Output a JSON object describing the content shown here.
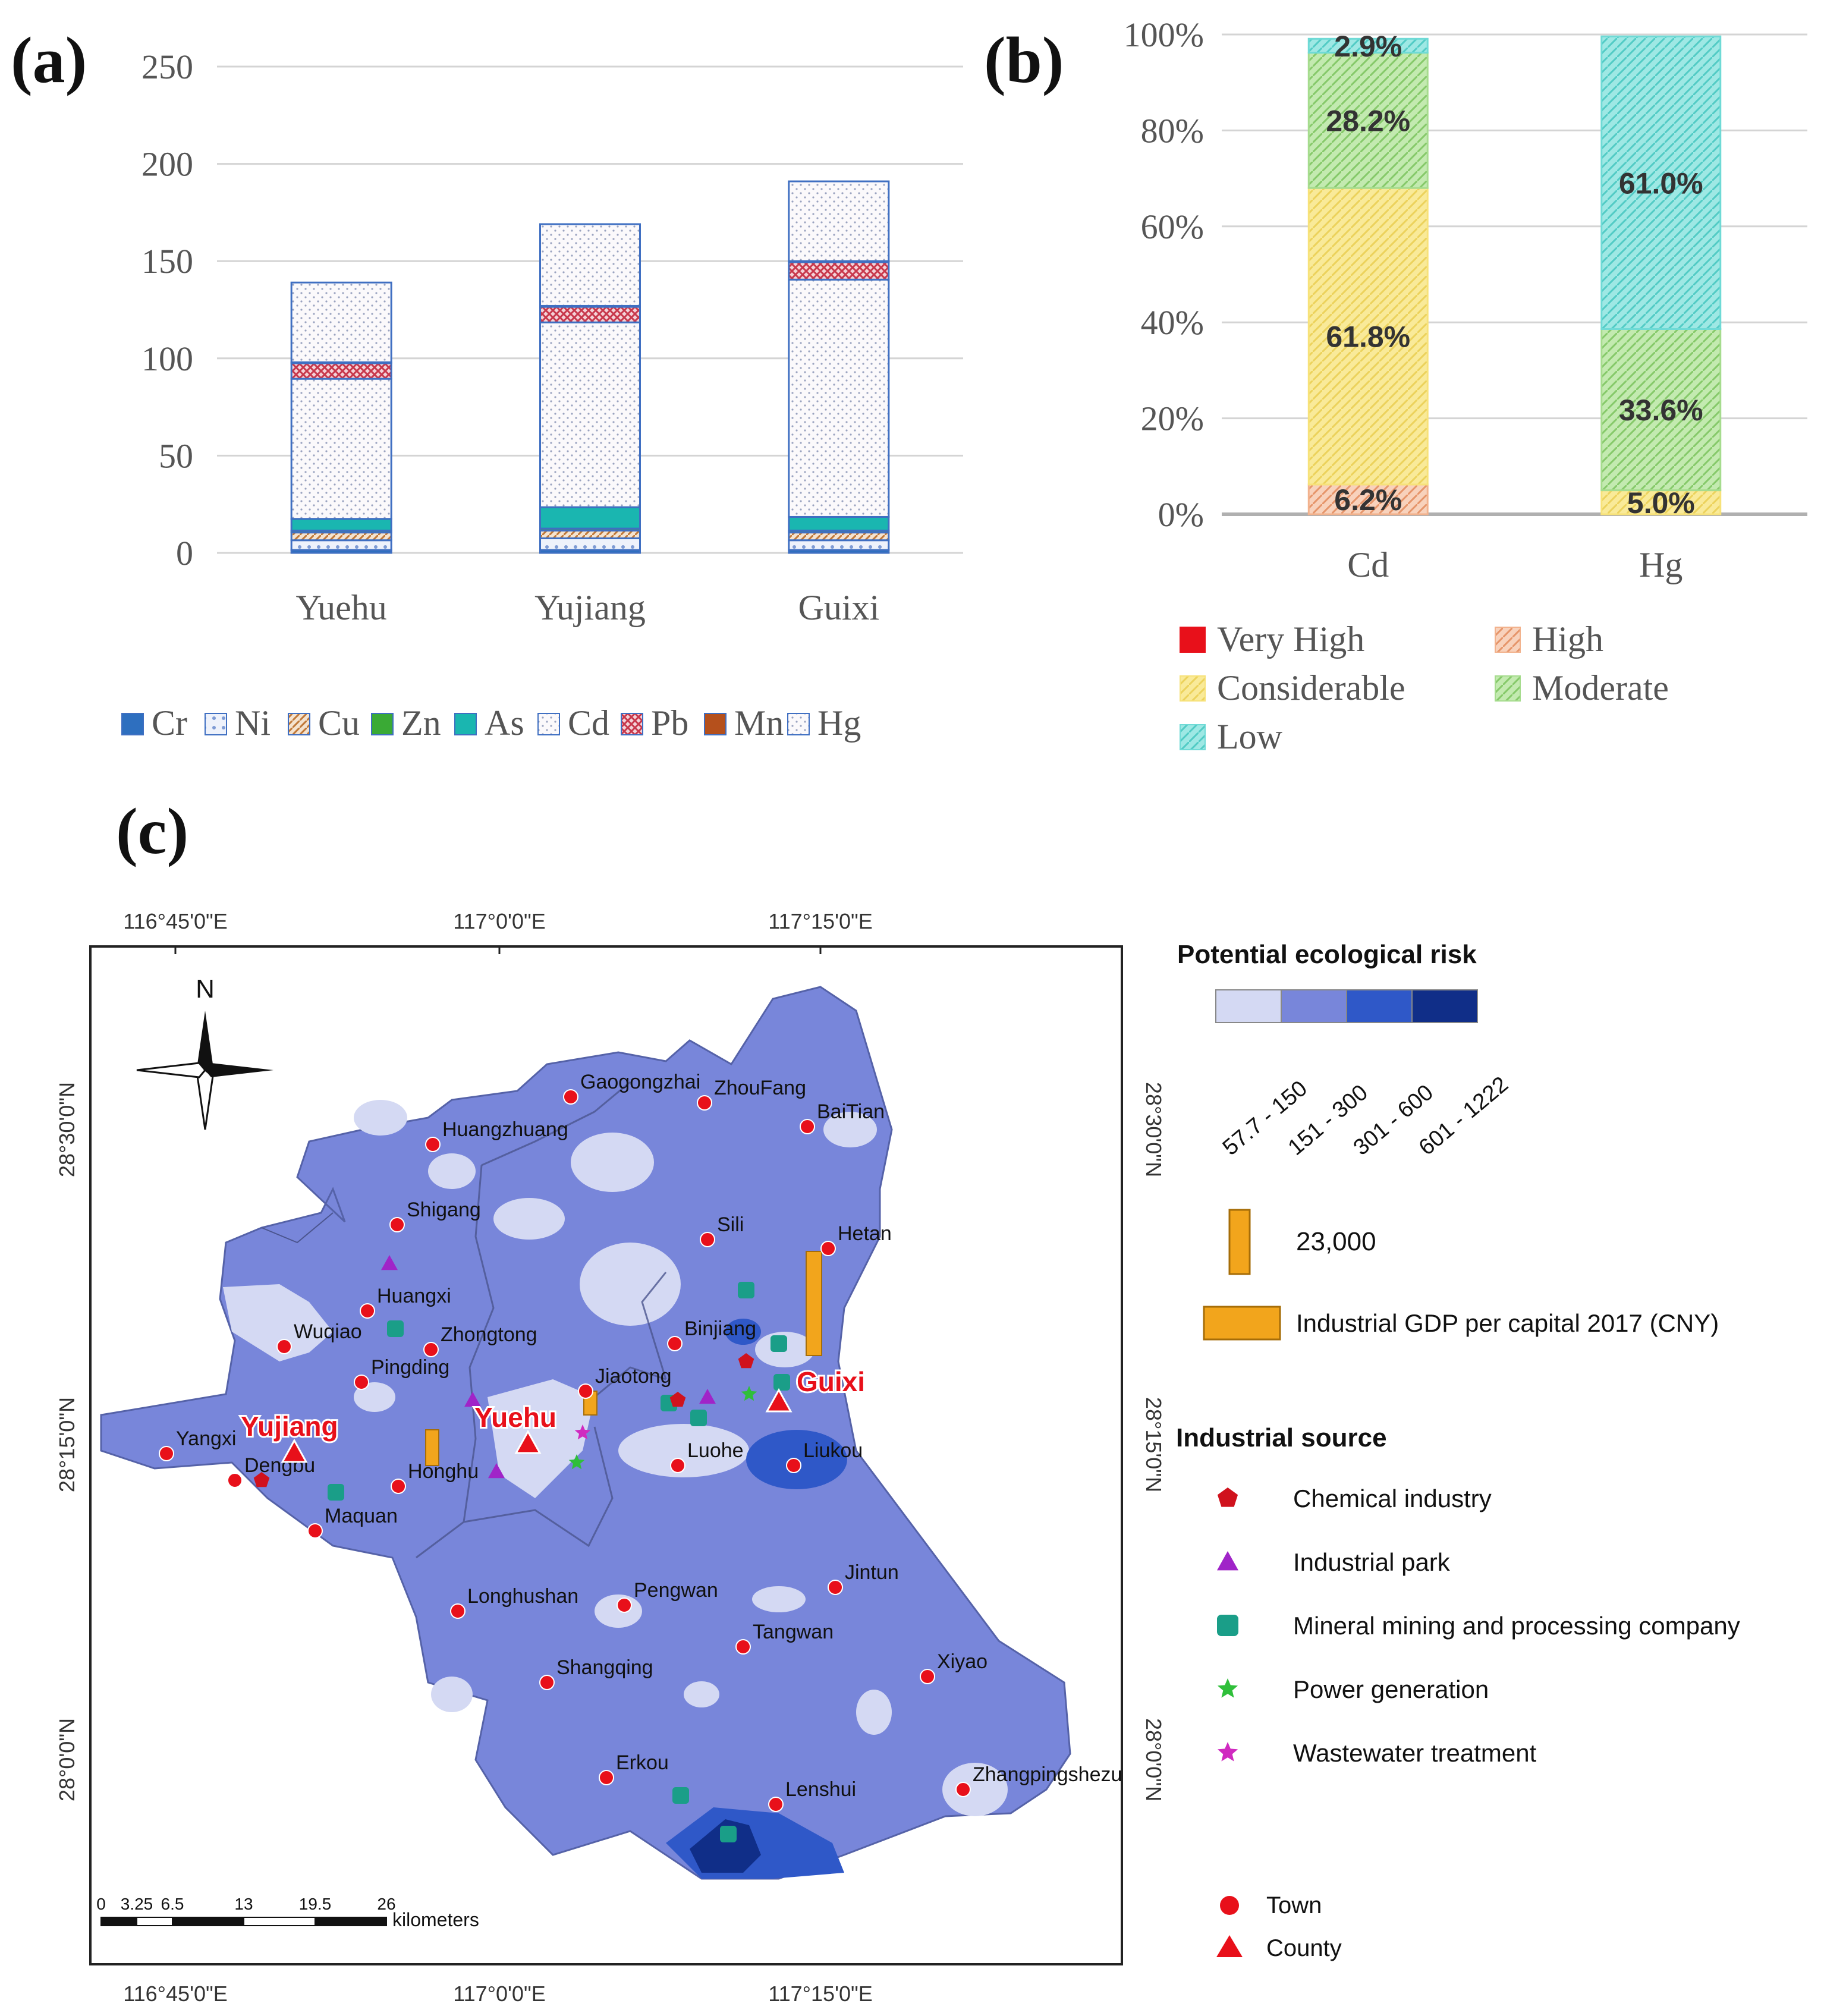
{
  "panels": {
    "a": "(a)",
    "b": "(b)",
    "c": "(c)"
  },
  "chart_data": [
    {
      "id": "a",
      "type": "bar",
      "stacked": true,
      "categories": [
        "Yuehu",
        "Yujiang",
        "Guixi"
      ],
      "ylim": [
        0,
        250
      ],
      "yticks": [
        0,
        50,
        100,
        150,
        200,
        250
      ],
      "grid": true,
      "legend": "bottom",
      "series": [
        {
          "name": "Cr",
          "color": "#2e6fbf",
          "values": [
            1.5,
            1.5,
            1.5
          ]
        },
        {
          "name": "Ni",
          "color": "#8fa8d8",
          "values": [
            5,
            6,
            5
          ]
        },
        {
          "name": "Cu",
          "color": "#c9884f",
          "values": [
            4,
            4,
            4
          ]
        },
        {
          "name": "Zn",
          "color": "#3aaa35",
          "values": [
            1,
            1,
            1
          ]
        },
        {
          "name": "As",
          "color": "#1ab6b0",
          "values": [
            6,
            11,
            7
          ]
        },
        {
          "name": "Cd",
          "color": "#9aa8c8",
          "values": [
            72,
            95,
            122
          ]
        },
        {
          "name": "Pb",
          "color": "#d05a6a",
          "values": [
            8,
            8,
            9
          ]
        },
        {
          "name": "Mn",
          "color": "#b5501c",
          "values": [
            0.5,
            0.5,
            0.5
          ]
        },
        {
          "name": "Hg",
          "color": "#9aa8c8",
          "values": [
            41,
            42,
            41
          ]
        }
      ]
    },
    {
      "id": "b",
      "type": "bar",
      "stacked": true,
      "categories": [
        "Cd",
        "Hg"
      ],
      "ylim": [
        0,
        100
      ],
      "yticks": [
        "0%",
        "20%",
        "40%",
        "60%",
        "80%",
        "100%"
      ],
      "grid": true,
      "legend": "bottom",
      "series": [
        {
          "name": "High",
          "color": "#f2b28d",
          "values": [
            6.2,
            0
          ],
          "labels": [
            "6.2%",
            ""
          ]
        },
        {
          "name": "Considerable",
          "color": "#f7e27a",
          "values": [
            61.8,
            5.0
          ],
          "labels": [
            "61.8%",
            "5.0%"
          ]
        },
        {
          "name": "Moderate",
          "color": "#a6dc8e",
          "values": [
            28.2,
            33.6
          ],
          "labels": [
            "28.2%",
            "33.6%"
          ]
        },
        {
          "name": "Low",
          "color": "#6fdad6",
          "values": [
            2.9,
            61.0
          ],
          "labels": [
            "2.9%",
            "61.0%"
          ]
        }
      ],
      "legend_entries": [
        {
          "name": "Very High",
          "color": "#e8101a"
        },
        {
          "name": "High",
          "color": "#f2b28d"
        },
        {
          "name": "Considerable",
          "color": "#f7e27a"
        },
        {
          "name": "Moderate",
          "color": "#a6dc8e"
        },
        {
          "name": "Low",
          "color": "#6fdad6"
        }
      ]
    }
  ],
  "map": {
    "top_lon_labels": [
      "116°45'0\"E",
      "117°0'0\"E",
      "117°15'0\"E"
    ],
    "bottom_lon_labels": [
      "116°45'0\"E",
      "117°0'0\"E",
      "117°15'0\"E"
    ],
    "left_lat_labels": [
      "28°30'0\"N",
      "28°15'0\"N",
      "28°0'0\"N"
    ],
    "right_lat_labels": [
      "28°30'0\"N",
      "28°15'0\"N",
      "28°0'0\"N"
    ],
    "north": "N",
    "scale_ticks": [
      "0",
      "3.25",
      "6.5",
      "13",
      "19.5",
      "26"
    ],
    "scale_unit": "kilometers",
    "counties": [
      "Yujiang",
      "Yuehu",
      "Guixi"
    ],
    "towns": [
      "Gaogongzhai",
      "ZhouFang",
      "BaiTian",
      "Huangzhuang",
      "Shigang",
      "Sili",
      "Hetan",
      "Huangxi",
      "Wuqiao",
      "Zhongtong",
      "Binjiang",
      "Pingding",
      "Jiaotong",
      "Yangxi",
      "Dengbu",
      "Honghu",
      "Luohe",
      "Liukou",
      "Maquan",
      "Jintun",
      "Longhushan",
      "Pengwan",
      "Tangwan",
      "Xiyao",
      "Shangqing",
      "Erkou",
      "Lenshui",
      "Zhangpingshezu"
    ],
    "colors": {
      "risk1": "#d4d9f3",
      "risk2": "#7886da",
      "risk3": "#2f58c8",
      "risk4": "#102e88",
      "town": "#e8101a",
      "gdp": "#f2a51c"
    },
    "legend": {
      "risk_title": "Potential ecological risk",
      "risk_classes": [
        "57.7 - 150",
        "151 - 300",
        "301 - 600",
        "601 - 1222"
      ],
      "gdp_value": "23,000",
      "gdp_label": "Industrial GDP per capital 2017 (CNY)",
      "source_title": "Industrial source",
      "sources": [
        {
          "name": "Chemical industry",
          "icon": "pentagon-icon",
          "color": "#d0121d"
        },
        {
          "name": "Industrial park",
          "icon": "triangle-icon",
          "color": "#a024c8"
        },
        {
          "name": "Mineral mining and processing company",
          "icon": "mining-icon",
          "color": "#1a9e88"
        },
        {
          "name": "Power generation",
          "icon": "gear-icon",
          "color": "#2fbf3a"
        },
        {
          "name": "Wastewater treatment",
          "icon": "star-icon",
          "color": "#d02ac0"
        }
      ],
      "town_label": "Town",
      "county_label": "County"
    }
  }
}
